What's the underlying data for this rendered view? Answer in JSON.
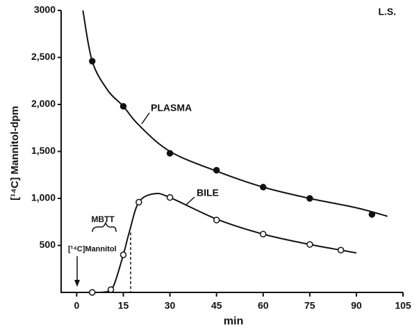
{
  "chart_data": {
    "type": "line",
    "y_label": "[¹⁴C] Mannitol-dpm",
    "x_label": "min",
    "corner_label": "L.S.",
    "annotations": [
      "MBTT",
      "[¹⁴C]Mannitol"
    ],
    "xlim": [
      -5,
      105
    ],
    "xticks": [
      0,
      15,
      30,
      45,
      60,
      75,
      90,
      105
    ],
    "ylim": [
      0,
      3000
    ],
    "yticks": [
      500,
      {
        "value": 1000,
        "label": "1,000"
      },
      {
        "value": 1500,
        "label": "1,500"
      },
      {
        "value": 2000,
        "label": "2,000"
      },
      {
        "value": 2500,
        "label": "2,500"
      },
      3000
    ],
    "series": [
      {
        "name": "PLASMA",
        "color": "#111111",
        "marker": "filled",
        "x": [
          5,
          15,
          30,
          45,
          60,
          75,
          95
        ],
        "values": [
          2460,
          1980,
          1480,
          1300,
          1120,
          1000,
          830
        ]
      },
      {
        "name": "BILE",
        "color": "#111111",
        "marker": "open",
        "x": [
          5,
          11,
          15,
          20,
          30,
          45,
          60,
          75,
          85
        ],
        "values": [
          0,
          30,
          400,
          960,
          1010,
          770,
          620,
          510,
          450
        ]
      },
      {
        "color": "#111111",
        "marker": "none",
        "x": [
          2,
          5,
          10,
          15,
          20,
          30,
          45,
          60,
          75,
          90,
          100
        ],
        "values": [
          3000,
          2460,
          2150,
          1980,
          1780,
          1500,
          1290,
          1120,
          1000,
          900,
          810
        ]
      },
      {
        "color": "#111111",
        "marker": "none",
        "x": [
          5,
          10,
          12,
          15,
          17,
          20,
          25,
          30,
          45,
          60,
          75,
          85,
          90
        ],
        "values": [
          0,
          10,
          80,
          400,
          650,
          960,
          1050,
          1010,
          780,
          620,
          510,
          450,
          420
        ]
      }
    ]
  }
}
